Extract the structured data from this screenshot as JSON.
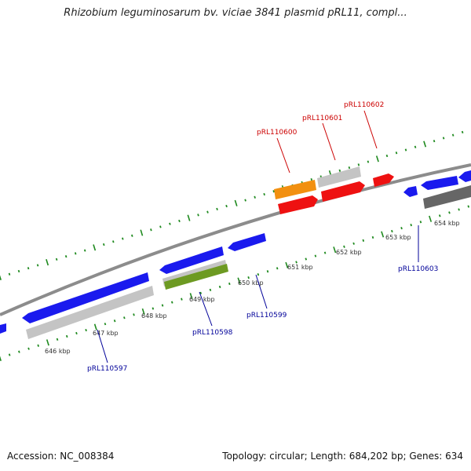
{
  "title": "Rhizobium leguminosarum bv. viciae 3841 plasmid pRL11, compl...",
  "footer": {
    "accession": "Accession: NC_008384",
    "topology": "Topology: circular; Length: 684,202 bp; Genes: 634"
  },
  "kbp_labels": [
    "646 kbp",
    "647 kbp",
    "648 kbp",
    "649 kbp",
    "650 kbp",
    "651 kbp",
    "652 kbp",
    "653 kbp",
    "654 kbp"
  ],
  "gene_labels": {
    "forward": [
      "pRL110600",
      "pRL110601",
      "pRL110602"
    ],
    "reverse": [
      "pRL110597",
      "pRL110598",
      "pRL110599",
      "pRL110603"
    ]
  },
  "colors": {
    "backbone": "#8c8c8c",
    "tick": "#1f8a1f",
    "forward_label": "#cc0000",
    "reverse_label": "#000099",
    "blue_gene": "#1a1aee",
    "red_gene": "#ee1111",
    "orange_gene": "#f29010",
    "gray_gene": "#c4c4c4",
    "dark_gene": "#666666",
    "olive_gene": "#6d9a22"
  }
}
